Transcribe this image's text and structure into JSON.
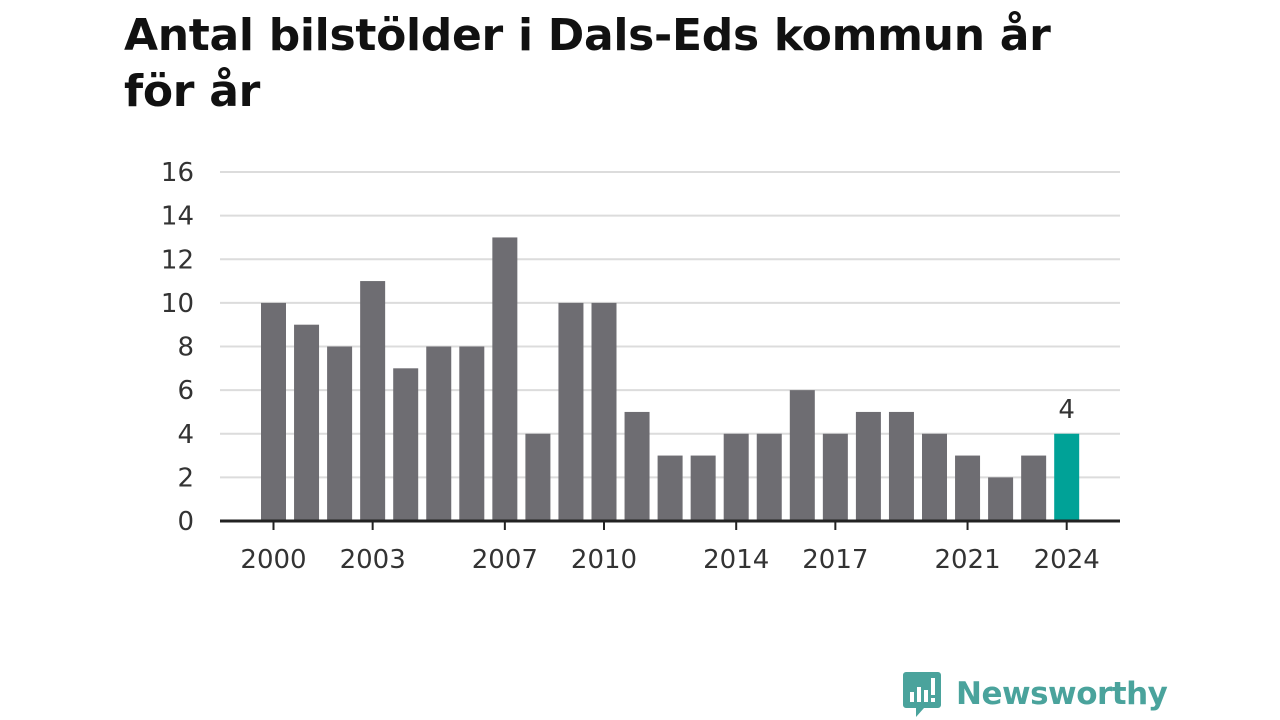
{
  "title": "Antal bilstölder i Dals-Eds kommun år för år",
  "brand": {
    "name": "Newsworthy",
    "logo_icon": "newsworthy-logo-icon",
    "color": "#4aa39c"
  },
  "colors": {
    "bar": "#6e6d72",
    "highlight": "#00a297",
    "grid": "#dcdcdc",
    "axis": "#222222"
  },
  "chart_data": {
    "type": "bar",
    "title": "Antal bilstölder i Dals-Eds kommun år för år",
    "xlabel": "",
    "ylabel": "",
    "ylim": [
      0,
      16
    ],
    "yticks": [
      0,
      2,
      4,
      6,
      8,
      10,
      12,
      14,
      16
    ],
    "grid": true,
    "categories": [
      2000,
      2001,
      2002,
      2003,
      2004,
      2005,
      2006,
      2007,
      2008,
      2009,
      2010,
      2011,
      2012,
      2013,
      2014,
      2015,
      2016,
      2017,
      2018,
      2019,
      2020,
      2021,
      2022,
      2023,
      2024
    ],
    "values": [
      10,
      9,
      8,
      11,
      7,
      8,
      8,
      13,
      4,
      10,
      10,
      5,
      3,
      3,
      4,
      4,
      6,
      4,
      5,
      5,
      4,
      3,
      2,
      3,
      4
    ],
    "xtick_labels": [
      "2000",
      "2003",
      "2007",
      "2010",
      "2014",
      "2017",
      "2021",
      "2024"
    ],
    "highlight": {
      "category": 2024,
      "value": 4,
      "label": "4"
    }
  }
}
